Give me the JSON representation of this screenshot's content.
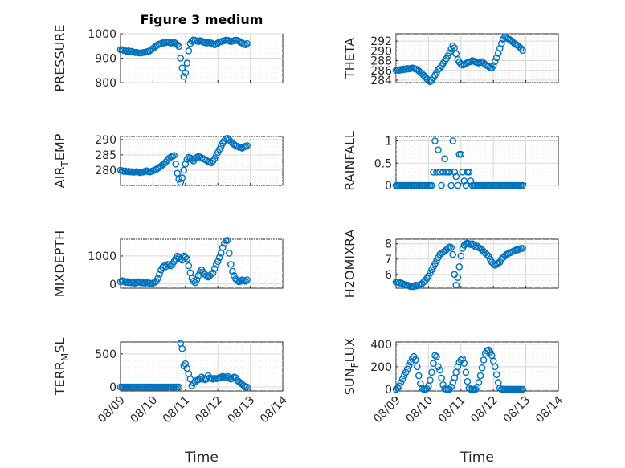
{
  "figure": {
    "title": "Figure 3 medium",
    "xlabel": "Time",
    "xticklabels": [
      "08/09",
      "08/10",
      "08/11",
      "08/12",
      "08/13",
      "08/14"
    ],
    "marker_color": "#0072bd"
  },
  "chart_data": [
    {
      "type": "scatter",
      "name": "PRESSURE",
      "ylabel": "PRESSURE",
      "ylim": [
        800,
        1000
      ],
      "yticks": [
        800,
        900,
        1000
      ],
      "xlim": [
        0,
        5
      ],
      "x": [
        0.0,
        0.05,
        0.1,
        0.15,
        0.2,
        0.25,
        0.3,
        0.35,
        0.4,
        0.45,
        0.5,
        0.55,
        0.6,
        0.65,
        0.7,
        0.75,
        0.8,
        0.85,
        0.9,
        0.95,
        1.0,
        1.05,
        1.1,
        1.15,
        1.2,
        1.25,
        1.3,
        1.35,
        1.4,
        1.45,
        1.5,
        1.55,
        1.6,
        1.65,
        1.7,
        1.75,
        1.8,
        1.85,
        1.9,
        1.95,
        2.0,
        2.05,
        2.1,
        2.15,
        2.2,
        2.25,
        2.3,
        2.35,
        2.4,
        2.45,
        2.5,
        2.55,
        2.6,
        2.65,
        2.7,
        2.75,
        2.8,
        2.85,
        2.9,
        2.95,
        3.0,
        3.05,
        3.1,
        3.15,
        3.2,
        3.25,
        3.3,
        3.35,
        3.4,
        3.45,
        3.5,
        3.55,
        3.6,
        3.65,
        3.7,
        3.75,
        3.8,
        3.85,
        3.9
      ],
      "y": [
        935,
        935,
        932,
        930,
        928,
        930,
        927,
        928,
        925,
        923,
        924,
        922,
        921,
        922,
        923,
        924,
        926,
        928,
        930,
        935,
        940,
        945,
        950,
        955,
        958,
        960,
        963,
        962,
        965,
        966,
        964,
        962,
        963,
        965,
        960,
        955,
        948,
        900,
        860,
        825,
        840,
        880,
        930,
        960,
        970,
        975,
        973,
        970,
        968,
        972,
        970,
        966,
        964,
        962,
        965,
        963,
        962,
        958,
        955,
        958,
        962,
        966,
        968,
        970,
        972,
        974,
        973,
        971,
        968,
        970,
        972,
        974,
        973,
        970,
        965,
        962,
        958,
        955,
        960
      ]
    },
    {
      "type": "scatter",
      "name": "THETA",
      "ylabel": "THETA",
      "ylim": [
        283.5,
        293.5
      ],
      "yticks": [
        284,
        286,
        288,
        290,
        292
      ],
      "xlim": [
        0,
        5
      ],
      "x": [
        0.0,
        0.05,
        0.1,
        0.15,
        0.2,
        0.25,
        0.3,
        0.35,
        0.4,
        0.45,
        0.5,
        0.55,
        0.6,
        0.65,
        0.7,
        0.75,
        0.8,
        0.85,
        0.9,
        0.95,
        1.0,
        1.05,
        1.1,
        1.15,
        1.2,
        1.25,
        1.3,
        1.35,
        1.4,
        1.45,
        1.5,
        1.55,
        1.6,
        1.65,
        1.7,
        1.75,
        1.8,
        1.85,
        1.9,
        1.95,
        2.0,
        2.05,
        2.1,
        2.15,
        2.2,
        2.25,
        2.3,
        2.35,
        2.4,
        2.45,
        2.5,
        2.55,
        2.6,
        2.65,
        2.7,
        2.75,
        2.8,
        2.85,
        2.9,
        2.95,
        3.0,
        3.05,
        3.1,
        3.15,
        3.2,
        3.25,
        3.3,
        3.35,
        3.4,
        3.45,
        3.5,
        3.55,
        3.6,
        3.65,
        3.7,
        3.75,
        3.8,
        3.85,
        3.9
      ],
      "y": [
        286.0,
        286.1,
        286.0,
        286.2,
        286.1,
        286.3,
        286.2,
        286.4,
        286.3,
        286.4,
        286.5,
        286.4,
        286.3,
        286.2,
        285.9,
        285.6,
        285.3,
        285.0,
        284.7,
        284.3,
        283.9,
        283.7,
        284.0,
        284.5,
        285.0,
        285.6,
        286.2,
        286.5,
        286.9,
        287.4,
        287.9,
        288.4,
        289.0,
        289.6,
        290.4,
        291.0,
        290.6,
        289.4,
        288.2,
        287.7,
        287.3,
        287.1,
        287.2,
        287.4,
        287.6,
        287.7,
        287.8,
        288.0,
        287.9,
        287.7,
        287.6,
        287.5,
        287.6,
        287.8,
        287.5,
        287.2,
        287.0,
        286.8,
        286.6,
        286.5,
        287.0,
        287.8,
        288.6,
        289.5,
        290.5,
        291.5,
        292.4,
        292.9,
        292.7,
        292.5,
        292.3,
        292.1,
        291.8,
        291.5,
        291.3,
        291.1,
        290.8,
        290.5,
        290.1
      ]
    },
    {
      "type": "scatter",
      "name": "AIR_TEMP",
      "ylabel": "AIR_TEMP",
      "ylim": [
        275,
        291
      ],
      "yticks": [
        280,
        285,
        290
      ],
      "xlim": [
        0,
        5
      ],
      "x": [
        0.0,
        0.05,
        0.1,
        0.15,
        0.2,
        0.25,
        0.3,
        0.35,
        0.4,
        0.45,
        0.5,
        0.55,
        0.6,
        0.65,
        0.7,
        0.75,
        0.8,
        0.85,
        0.9,
        0.95,
        1.0,
        1.05,
        1.1,
        1.15,
        1.2,
        1.25,
        1.3,
        1.35,
        1.4,
        1.45,
        1.5,
        1.55,
        1.6,
        1.65,
        1.7,
        1.75,
        1.8,
        1.85,
        1.9,
        1.95,
        2.0,
        2.05,
        2.1,
        2.15,
        2.2,
        2.25,
        2.3,
        2.35,
        2.4,
        2.45,
        2.5,
        2.55,
        2.6,
        2.65,
        2.7,
        2.75,
        2.8,
        2.85,
        2.9,
        2.95,
        3.0,
        3.05,
        3.1,
        3.15,
        3.2,
        3.25,
        3.3,
        3.35,
        3.4,
        3.45,
        3.5,
        3.55,
        3.6,
        3.65,
        3.7,
        3.75,
        3.8,
        3.85,
        3.9
      ],
      "y": [
        280.0,
        279.8,
        279.6,
        279.7,
        279.5,
        279.6,
        279.4,
        279.5,
        279.3,
        279.4,
        279.5,
        279.4,
        279.2,
        279.3,
        279.4,
        279.6,
        279.8,
        279.5,
        279.4,
        279.6,
        279.8,
        280.0,
        280.3,
        280.6,
        281.0,
        281.3,
        281.8,
        282.2,
        282.7,
        283.3,
        283.9,
        284.3,
        284.6,
        284.8,
        282.0,
        279.0,
        277.0,
        276.0,
        277.5,
        280.0,
        282.0,
        283.5,
        284.2,
        284.0,
        283.5,
        283.0,
        283.8,
        284.2,
        284.5,
        284.3,
        284.0,
        283.7,
        283.5,
        283.2,
        282.8,
        282.6,
        282.4,
        283.0,
        283.8,
        284.8,
        285.8,
        286.8,
        287.8,
        288.8,
        289.6,
        290.3,
        290.4,
        289.9,
        289.3,
        288.8,
        288.4,
        288.0,
        287.8,
        287.5,
        287.4,
        287.2,
        287.5,
        287.8,
        288.0
      ]
    },
    {
      "type": "scatter",
      "name": "RAINFALL",
      "ylabel": "RAINFALL",
      "ylim": [
        0,
        1.1
      ],
      "yticks": [
        0,
        0.5,
        1
      ],
      "xlim": [
        0,
        5
      ],
      "x": [
        0.0,
        0.05,
        0.1,
        0.15,
        0.2,
        0.25,
        0.3,
        0.35,
        0.4,
        0.45,
        0.5,
        0.55,
        0.6,
        0.65,
        0.7,
        0.75,
        0.8,
        0.85,
        0.9,
        0.95,
        1.0,
        1.05,
        1.1,
        1.15,
        1.2,
        1.25,
        1.3,
        1.35,
        1.4,
        1.45,
        1.5,
        1.55,
        1.6,
        1.65,
        1.7,
        1.75,
        1.8,
        1.85,
        1.9,
        1.95,
        2.0,
        2.05,
        2.1,
        2.15,
        2.2,
        2.25,
        2.3,
        2.35,
        2.4,
        2.45,
        2.5,
        2.55,
        2.6,
        2.65,
        2.7,
        2.75,
        2.8,
        2.85,
        2.9,
        2.95,
        3.0,
        3.05,
        3.1,
        3.15,
        3.2,
        3.25,
        3.3,
        3.35,
        3.4,
        3.45,
        3.5,
        3.55,
        3.6,
        3.65,
        3.7,
        3.75,
        3.8,
        3.85,
        3.9
      ],
      "y": [
        0,
        0,
        0,
        0,
        0,
        0,
        0,
        0,
        0,
        0,
        0,
        0,
        0,
        0,
        0,
        0,
        0,
        0,
        0,
        0,
        0,
        0,
        0,
        0.3,
        1.0,
        0.3,
        0.8,
        0.3,
        0,
        0.3,
        0.6,
        0.3,
        0.3,
        0.3,
        0,
        1.0,
        0.3,
        0.2,
        0,
        0.7,
        0.7,
        0.3,
        0.1,
        0,
        0.3,
        0.3,
        0.1,
        0,
        0,
        0,
        0,
        0,
        0,
        0,
        0,
        0,
        0,
        0,
        0,
        0,
        0,
        0,
        0,
        0,
        0,
        0,
        0,
        0,
        0,
        0,
        0,
        0,
        0,
        0,
        0,
        0,
        0,
        0,
        0
      ]
    },
    {
      "type": "scatter",
      "name": "MIXDEPTH",
      "ylabel": "MIXDEPTH",
      "ylim": [
        -150,
        1600
      ],
      "yticks": [
        0,
        1000
      ],
      "xlim": [
        0,
        5
      ],
      "x": [
        0.0,
        0.05,
        0.1,
        0.15,
        0.2,
        0.25,
        0.3,
        0.35,
        0.4,
        0.45,
        0.5,
        0.55,
        0.6,
        0.65,
        0.7,
        0.75,
        0.8,
        0.85,
        0.9,
        0.95,
        1.0,
        1.05,
        1.1,
        1.15,
        1.2,
        1.25,
        1.3,
        1.35,
        1.4,
        1.45,
        1.5,
        1.55,
        1.6,
        1.65,
        1.7,
        1.75,
        1.8,
        1.85,
        1.9,
        1.95,
        2.0,
        2.05,
        2.1,
        2.15,
        2.2,
        2.25,
        2.3,
        2.35,
        2.4,
        2.45,
        2.5,
        2.55,
        2.6,
        2.65,
        2.7,
        2.75,
        2.8,
        2.85,
        2.9,
        2.95,
        3.0,
        3.05,
        3.1,
        3.15,
        3.2,
        3.25,
        3.3,
        3.35,
        3.4,
        3.45,
        3.5,
        3.55,
        3.6,
        3.65,
        3.7,
        3.75,
        3.8,
        3.85,
        3.9
      ],
      "y": [
        80,
        120,
        100,
        60,
        90,
        50,
        70,
        40,
        60,
        30,
        50,
        80,
        60,
        40,
        50,
        30,
        60,
        40,
        30,
        20,
        30,
        60,
        100,
        200,
        350,
        500,
        600,
        650,
        620,
        700,
        680,
        650,
        720,
        800,
        900,
        1000,
        950,
        900,
        850,
        1000,
        950,
        900,
        650,
        400,
        200,
        100,
        50,
        150,
        300,
        420,
        500,
        420,
        350,
        300,
        250,
        300,
        350,
        400,
        550,
        700,
        800,
        950,
        1100,
        1300,
        1450,
        1550,
        1560,
        1100,
        700,
        450,
        300,
        180,
        120,
        80,
        100,
        150,
        120,
        100,
        150
      ]
    },
    {
      "type": "scatter",
      "name": "H2OMIXRA",
      "ylabel": "H2OMIXRA",
      "ylim": [
        5.1,
        8.3
      ],
      "yticks": [
        6,
        7,
        8
      ],
      "xlim": [
        0,
        5
      ],
      "x": [
        0.0,
        0.05,
        0.1,
        0.15,
        0.2,
        0.25,
        0.3,
        0.35,
        0.4,
        0.45,
        0.5,
        0.55,
        0.6,
        0.65,
        0.7,
        0.75,
        0.8,
        0.85,
        0.9,
        0.95,
        1.0,
        1.05,
        1.1,
        1.15,
        1.2,
        1.25,
        1.3,
        1.35,
        1.4,
        1.45,
        1.5,
        1.55,
        1.6,
        1.65,
        1.7,
        1.75,
        1.8,
        1.85,
        1.9,
        1.95,
        2.0,
        2.05,
        2.1,
        2.15,
        2.2,
        2.25,
        2.3,
        2.35,
        2.4,
        2.45,
        2.5,
        2.55,
        2.6,
        2.65,
        2.7,
        2.75,
        2.8,
        2.85,
        2.9,
        2.95,
        3.0,
        3.05,
        3.1,
        3.15,
        3.2,
        3.25,
        3.3,
        3.35,
        3.4,
        3.45,
        3.5,
        3.55,
        3.6,
        3.65,
        3.7,
        3.75,
        3.8,
        3.85,
        3.9
      ],
      "y": [
        5.5,
        5.5,
        5.45,
        5.45,
        5.4,
        5.35,
        5.3,
        5.3,
        5.25,
        5.2,
        5.25,
        5.2,
        5.3,
        5.25,
        5.3,
        5.35,
        5.4,
        5.5,
        5.6,
        5.75,
        5.9,
        6.1,
        6.3,
        6.5,
        6.7,
        6.9,
        7.1,
        7.3,
        7.4,
        7.45,
        7.5,
        7.6,
        7.7,
        7.8,
        7.75,
        7.3,
        6.0,
        5.3,
        5.8,
        6.5,
        7.2,
        7.7,
        7.9,
        8.0,
        8.05,
        8.0,
        7.95,
        8.0,
        7.9,
        7.8,
        7.85,
        7.75,
        7.7,
        7.6,
        7.5,
        7.4,
        7.3,
        7.2,
        7.0,
        6.8,
        6.7,
        6.6,
        6.7,
        6.75,
        6.8,
        7.0,
        7.1,
        7.2,
        7.3,
        7.35,
        7.4,
        7.45,
        7.5,
        7.55,
        7.6,
        7.6,
        7.65,
        7.7,
        7.7
      ]
    },
    {
      "type": "scatter",
      "name": "TERR_MSL",
      "ylabel": "TERR_MSL",
      "ylim": [
        -60,
        680
      ],
      "yticks": [
        0,
        500
      ],
      "xlim": [
        0,
        5
      ],
      "x": [
        0.0,
        0.05,
        0.1,
        0.15,
        0.2,
        0.25,
        0.3,
        0.35,
        0.4,
        0.45,
        0.5,
        0.55,
        0.6,
        0.65,
        0.7,
        0.75,
        0.8,
        0.85,
        0.9,
        0.95,
        1.0,
        1.05,
        1.1,
        1.15,
        1.2,
        1.25,
        1.3,
        1.35,
        1.4,
        1.45,
        1.5,
        1.55,
        1.6,
        1.65,
        1.7,
        1.75,
        1.8,
        1.85,
        1.9,
        1.95,
        2.0,
        2.05,
        2.1,
        2.15,
        2.2,
        2.25,
        2.3,
        2.35,
        2.4,
        2.45,
        2.5,
        2.55,
        2.6,
        2.65,
        2.7,
        2.75,
        2.8,
        2.85,
        2.9,
        2.95,
        3.0,
        3.05,
        3.1,
        3.15,
        3.2,
        3.25,
        3.3,
        3.35,
        3.4,
        3.45,
        3.5,
        3.55,
        3.6,
        3.65,
        3.7,
        3.75,
        3.8,
        3.85,
        3.9
      ],
      "y": [
        0,
        0,
        0,
        0,
        0,
        0,
        0,
        0,
        0,
        0,
        0,
        0,
        0,
        0,
        0,
        0,
        0,
        0,
        0,
        0,
        0,
        0,
        0,
        0,
        0,
        0,
        0,
        0,
        0,
        0,
        0,
        0,
        0,
        0,
        0,
        0,
        0,
        660,
        580,
        320,
        350,
        280,
        200,
        120,
        20,
        60,
        80,
        100,
        110,
        120,
        150,
        130,
        110,
        120,
        170,
        140,
        130,
        120,
        130,
        125,
        130,
        140,
        150,
        160,
        150,
        140,
        160,
        140,
        120,
        130,
        150,
        140,
        100,
        80,
        60,
        40,
        20,
        0,
        0
      ]
    },
    {
      "type": "scatter",
      "name": "SUN_FLUX",
      "ylabel": "SUN_FLUX",
      "ylim": [
        -15,
        420
      ],
      "yticks": [
        0,
        200,
        400
      ],
      "xlim": [
        0,
        5
      ],
      "x": [
        0.0,
        0.05,
        0.1,
        0.15,
        0.2,
        0.25,
        0.3,
        0.35,
        0.4,
        0.45,
        0.5,
        0.55,
        0.6,
        0.65,
        0.7,
        0.75,
        0.8,
        0.85,
        0.9,
        0.95,
        1.0,
        1.05,
        1.1,
        1.15,
        1.2,
        1.25,
        1.3,
        1.35,
        1.4,
        1.45,
        1.5,
        1.55,
        1.6,
        1.65,
        1.7,
        1.75,
        1.8,
        1.85,
        1.9,
        1.95,
        2.0,
        2.05,
        2.1,
        2.15,
        2.2,
        2.25,
        2.3,
        2.35,
        2.4,
        2.45,
        2.5,
        2.55,
        2.6,
        2.65,
        2.7,
        2.75,
        2.8,
        2.85,
        2.9,
        2.95,
        3.0,
        3.05,
        3.1,
        3.15,
        3.2,
        3.25,
        3.3,
        3.35,
        3.4,
        3.45,
        3.5,
        3.55,
        3.6,
        3.65,
        3.7,
        3.75,
        3.8,
        3.85,
        3.9
      ],
      "y": [
        0,
        10,
        30,
        60,
        90,
        120,
        150,
        180,
        210,
        240,
        270,
        290,
        260,
        200,
        120,
        50,
        10,
        0,
        0,
        5,
        30,
        80,
        150,
        230,
        300,
        290,
        200,
        170,
        100,
        40,
        5,
        0,
        0,
        0,
        20,
        60,
        100,
        150,
        200,
        240,
        260,
        270,
        230,
        150,
        70,
        10,
        0,
        0,
        0,
        0,
        20,
        60,
        120,
        190,
        260,
        320,
        340,
        350,
        330,
        300,
        250,
        200,
        130,
        60,
        10,
        0,
        0,
        0,
        0,
        0,
        0,
        0,
        0,
        0,
        0,
        0,
        0,
        0,
        0
      ]
    }
  ]
}
